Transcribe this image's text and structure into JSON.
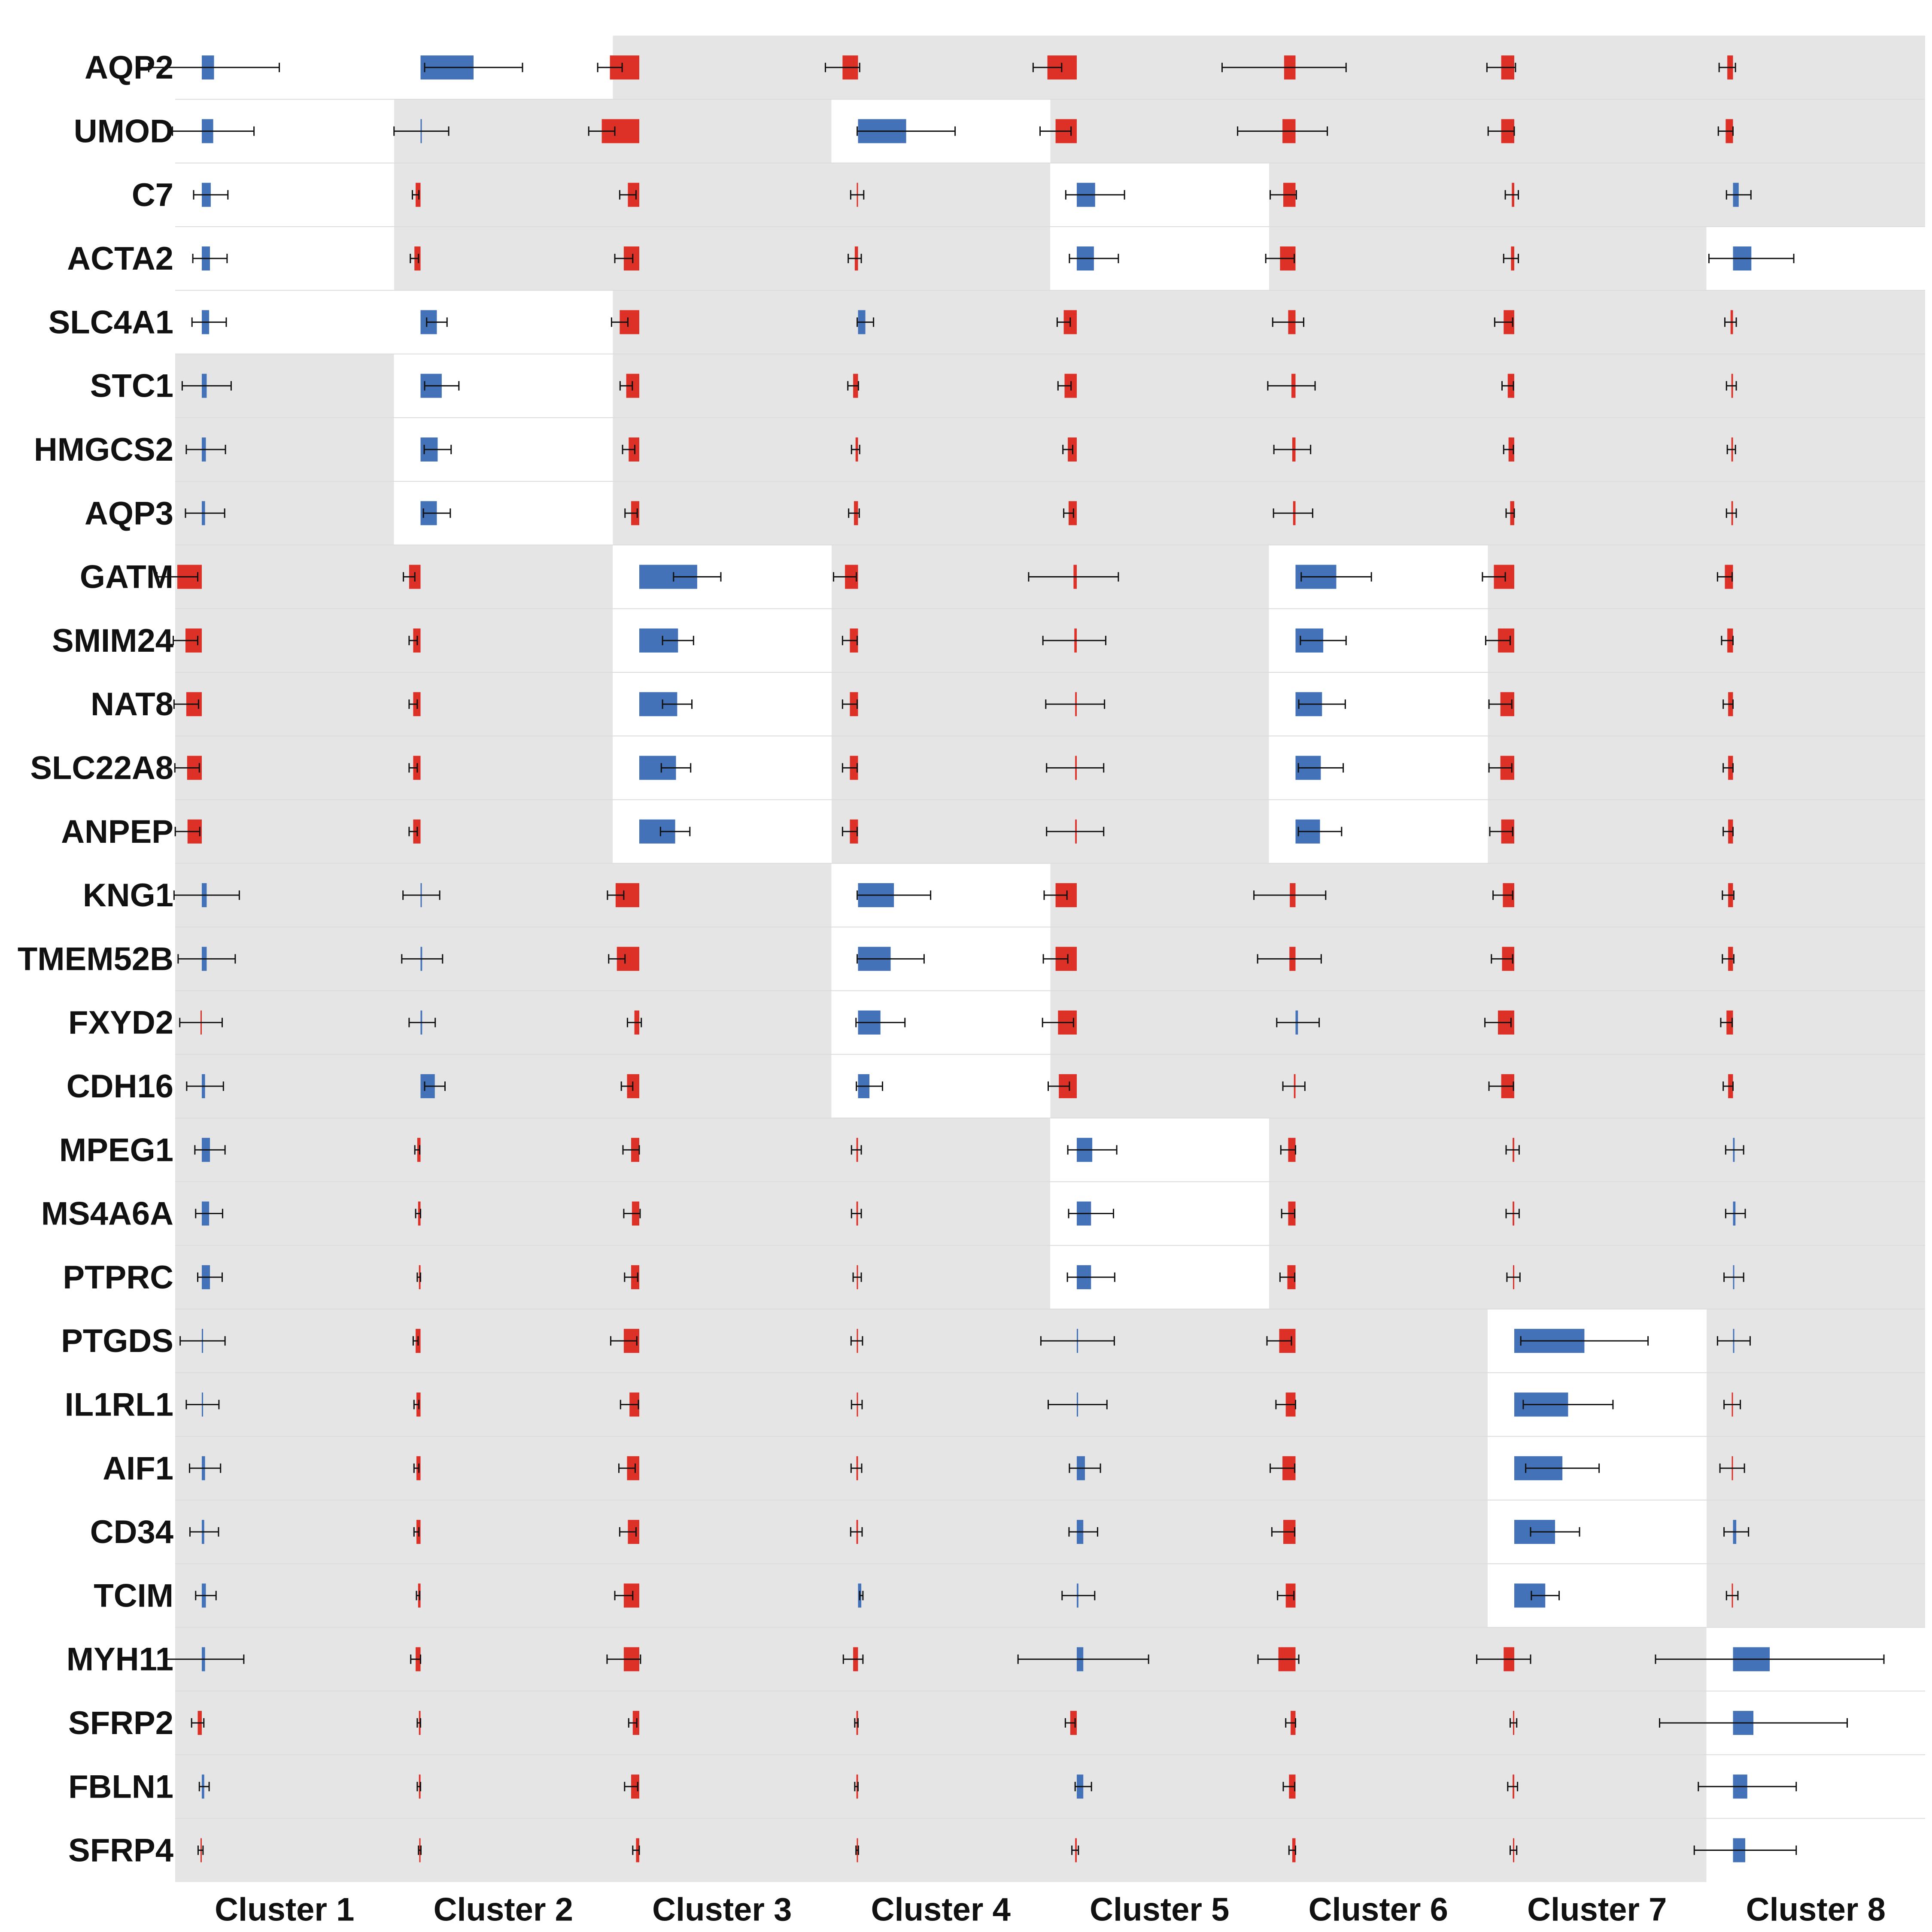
{
  "colors": {
    "panel_bg": "#e5e5e5",
    "highlight_bg": "#ffffff",
    "positive": "#4472b8",
    "negative": "#dd3128",
    "errorbar": "#111111"
  },
  "genes": [
    "AQP2",
    "UMOD",
    "C7",
    "ACTA2",
    "SLC4A1",
    "STC1",
    "HMGCS2",
    "AQP3",
    "GATM",
    "SMIM24",
    "NAT8",
    "SLC22A8",
    "ANPEP",
    "KNG1",
    "TMEM52B",
    "FXYD2",
    "CDH16",
    "MPEG1",
    "MS4A6A",
    "PTPRC",
    "PTGDS",
    "IL1RL1",
    "AIF1",
    "CD34",
    "TCIM",
    "MYH11",
    "SFRP2",
    "FBLN1",
    "SFRP4"
  ],
  "clusters": [
    "Cluster 1",
    "Cluster 2",
    "Cluster 3",
    "Cluster 4",
    "Cluster 5",
    "Cluster 6",
    "Cluster 7",
    "Cluster 8"
  ],
  "chart_data": {
    "type": "bar",
    "description_of_values": "signed marker score per gene per cluster; positive = blue bar to the right, negative = red bar to the left; err = half-width of error bar",
    "highlighted_cells": [
      [
        "AQP2",
        1
      ],
      [
        "UMOD",
        1
      ],
      [
        "C7",
        1
      ],
      [
        "ACTA2",
        1
      ],
      [
        "SLC4A1",
        1
      ],
      [
        "AQP2",
        2
      ],
      [
        "SLC4A1",
        2
      ],
      [
        "STC1",
        2
      ],
      [
        "HMGCS2",
        2
      ],
      [
        "AQP3",
        2
      ],
      [
        "GATM",
        3
      ],
      [
        "SMIM24",
        3
      ],
      [
        "NAT8",
        3
      ],
      [
        "SLC22A8",
        3
      ],
      [
        "ANPEP",
        3
      ],
      [
        "UMOD",
        4
      ],
      [
        "KNG1",
        4
      ],
      [
        "TMEM52B",
        4
      ],
      [
        "FXYD2",
        4
      ],
      [
        "CDH16",
        4
      ],
      [
        "C7",
        5
      ],
      [
        "ACTA2",
        5
      ],
      [
        "MPEG1",
        5
      ],
      [
        "MS4A6A",
        5
      ],
      [
        "PTPRC",
        5
      ],
      [
        "GATM",
        6
      ],
      [
        "SMIM24",
        6
      ],
      [
        "NAT8",
        6
      ],
      [
        "SLC22A8",
        6
      ],
      [
        "ANPEP",
        6
      ],
      [
        "PTGDS",
        7
      ],
      [
        "IL1RL1",
        7
      ],
      [
        "AIF1",
        7
      ],
      [
        "CD34",
        7
      ],
      [
        "TCIM",
        7
      ],
      [
        "ACTA2",
        8
      ],
      [
        "MYH11",
        8
      ],
      [
        "SFRP2",
        8
      ],
      [
        "FBLN1",
        8
      ],
      [
        "SFRP4",
        8
      ]
    ],
    "series": [
      {
        "cluster": "Cluster 1",
        "values": [
          0.3,
          0.28,
          0.22,
          0.2,
          0.18,
          0.12,
          0.1,
          0.08,
          -0.6,
          -0.4,
          -0.38,
          -0.36,
          -0.35,
          0.12,
          0.12,
          -0.02,
          0.08,
          0.2,
          0.18,
          0.2,
          0.02,
          0.02,
          0.08,
          0.06,
          0.1,
          0.08,
          -0.1,
          0.06,
          -0.03
        ],
        "err": [
          1.6,
          1.0,
          0.42,
          0.42,
          0.42,
          0.6,
          0.48,
          0.48,
          0.5,
          0.3,
          0.3,
          0.3,
          0.3,
          0.8,
          0.7,
          0.52,
          0.45,
          0.37,
          0.33,
          0.3,
          0.55,
          0.4,
          0.38,
          0.35,
          0.25,
          0.95,
          0.15,
          0.12,
          0.06
        ]
      },
      {
        "cluster": "Cluster 2",
        "values": [
          1.3,
          0.02,
          -0.12,
          -0.15,
          0.4,
          0.52,
          0.42,
          0.4,
          -0.28,
          -0.18,
          -0.18,
          -0.18,
          -0.18,
          0.02,
          0.04,
          0.04,
          0.35,
          -0.08,
          -0.06,
          -0.04,
          -0.12,
          -0.1,
          -0.1,
          -0.1,
          -0.06,
          -0.12,
          -0.04,
          -0.04,
          -0.02
        ],
        "err": [
          1.2,
          0.67,
          0.08,
          0.1,
          0.25,
          0.42,
          0.33,
          0.33,
          0.14,
          0.1,
          0.1,
          0.1,
          0.1,
          0.45,
          0.5,
          0.32,
          0.25,
          0.06,
          0.06,
          0.04,
          0.06,
          0.06,
          0.06,
          0.06,
          0.04,
          0.12,
          0.04,
          0.04,
          0.03
        ]
      },
      {
        "cluster": "Cluster 3",
        "values": [
          -0.72,
          -0.92,
          -0.28,
          -0.38,
          -0.48,
          -0.32,
          -0.26,
          -0.2,
          1.42,
          0.95,
          0.93,
          0.9,
          0.88,
          -0.58,
          -0.55,
          -0.12,
          -0.3,
          -0.2,
          -0.18,
          -0.2,
          -0.38,
          -0.24,
          -0.3,
          -0.28,
          -0.38,
          -0.38,
          -0.16,
          -0.2,
          -0.08
        ],
        "err": [
          0.3,
          0.32,
          0.2,
          0.22,
          0.2,
          0.15,
          0.15,
          0.15,
          0.58,
          0.38,
          0.36,
          0.36,
          0.36,
          0.2,
          0.2,
          0.17,
          0.14,
          0.2,
          0.2,
          0.16,
          0.32,
          0.22,
          0.2,
          0.2,
          0.22,
          0.41,
          0.1,
          0.16,
          0.08
        ]
      },
      {
        "cluster": "Cluster 4",
        "values": [
          -0.38,
          1.18,
          -0.02,
          -0.08,
          0.18,
          -0.12,
          -0.06,
          -0.1,
          -0.32,
          -0.2,
          -0.2,
          -0.2,
          -0.2,
          0.88,
          0.8,
          0.55,
          0.28,
          -0.04,
          -0.04,
          -0.02,
          -0.03,
          -0.03,
          -0.04,
          -0.04,
          0.08,
          -0.12,
          -0.04,
          -0.04,
          -0.02
        ],
        "err": [
          0.42,
          1.2,
          0.16,
          0.16,
          0.2,
          0.13,
          0.1,
          0.13,
          0.28,
          0.18,
          0.18,
          0.18,
          0.18,
          0.9,
          0.82,
          0.6,
          0.32,
          0.12,
          0.12,
          0.1,
          0.14,
          0.13,
          0.13,
          0.14,
          0.04,
          0.24,
          0.04,
          0.04,
          0.03
        ]
      },
      {
        "cluster": "Cluster 5",
        "values": [
          -0.72,
          -0.52,
          0.45,
          0.42,
          -0.32,
          -0.3,
          -0.22,
          -0.2,
          -0.08,
          -0.06,
          -0.04,
          -0.04,
          -0.04,
          -0.52,
          -0.52,
          -0.46,
          -0.44,
          0.38,
          0.35,
          0.35,
          0.02,
          0.02,
          0.2,
          0.16,
          0.04,
          0.16,
          -0.16,
          0.16,
          -0.04
        ],
        "err": [
          0.35,
          0.38,
          0.72,
          0.6,
          0.16,
          0.16,
          0.12,
          0.12,
          1.1,
          0.77,
          0.72,
          0.7,
          0.7,
          0.28,
          0.3,
          0.38,
          0.26,
          0.6,
          0.55,
          0.58,
          0.9,
          0.72,
          0.38,
          0.35,
          0.4,
          1.6,
          0.12,
          0.2,
          0.08
        ]
      },
      {
        "cluster": "Cluster 6",
        "values": [
          -0.28,
          -0.32,
          -0.3,
          -0.38,
          -0.18,
          -0.1,
          -0.08,
          -0.06,
          1.0,
          0.68,
          0.65,
          0.62,
          0.6,
          -0.14,
          -0.15,
          0.06,
          -0.04,
          -0.18,
          -0.18,
          -0.2,
          -0.4,
          -0.24,
          -0.32,
          -0.3,
          -0.24,
          -0.42,
          -0.12,
          -0.16,
          -0.08
        ],
        "err": [
          1.52,
          1.1,
          0.32,
          0.35,
          0.38,
          0.58,
          0.45,
          0.48,
          0.86,
          0.56,
          0.57,
          0.55,
          0.53,
          0.88,
          0.78,
          0.52,
          0.27,
          0.18,
          0.16,
          0.18,
          0.3,
          0.24,
          0.3,
          0.28,
          0.2,
          0.5,
          0.12,
          0.14,
          0.08
        ]
      },
      {
        "cluster": "Cluster 7",
        "values": [
          -0.32,
          -0.32,
          -0.06,
          -0.08,
          -0.26,
          -0.16,
          -0.14,
          -0.1,
          -0.5,
          -0.4,
          -0.34,
          -0.34,
          -0.32,
          -0.28,
          -0.3,
          -0.4,
          -0.32,
          -0.04,
          -0.04,
          -0.02,
          1.72,
          1.32,
          1.18,
          1.0,
          0.76,
          -0.26,
          -0.02,
          -0.04,
          -0.02
        ],
        "err": [
          0.35,
          0.32,
          0.16,
          0.18,
          0.22,
          0.14,
          0.12,
          0.1,
          0.28,
          0.3,
          0.28,
          0.28,
          0.28,
          0.24,
          0.26,
          0.32,
          0.3,
          0.16,
          0.16,
          0.16,
          1.56,
          1.1,
          0.9,
          0.6,
          0.34,
          0.66,
          0.08,
          0.12,
          0.08
        ]
      },
      {
        "cluster": "Cluster 8",
        "values": [
          -0.14,
          -0.18,
          0.14,
          0.45,
          -0.06,
          -0.04,
          -0.04,
          -0.04,
          -0.2,
          -0.14,
          -0.12,
          -0.12,
          -0.12,
          -0.12,
          -0.12,
          -0.16,
          -0.12,
          0.04,
          0.06,
          0.02,
          0.02,
          -0.02,
          -0.02,
          0.08,
          -0.02,
          0.9,
          0.5,
          0.35,
          0.3
        ],
        "err": [
          0.2,
          0.18,
          0.3,
          1.04,
          0.14,
          0.12,
          0.1,
          0.12,
          0.18,
          0.14,
          0.12,
          0.12,
          0.12,
          0.14,
          0.14,
          0.14,
          0.12,
          0.22,
          0.24,
          0.24,
          0.4,
          0.2,
          0.3,
          0.3,
          0.14,
          2.8,
          2.3,
          1.2,
          1.25
        ]
      }
    ]
  }
}
